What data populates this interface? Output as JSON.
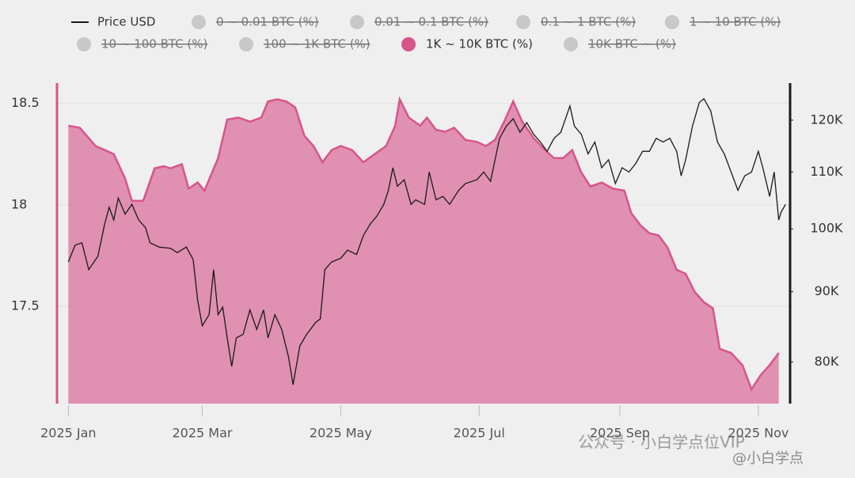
{
  "chart_data": {
    "type": "area",
    "ylim": [
      17.02,
      18.6
    ],
    "yticks": [
      17.5,
      18,
      18.5
    ],
    "y2lim": [
      74600,
      127700
    ],
    "y2log": true,
    "y2ticks": [
      {
        "value": 80000,
        "label": "80K"
      },
      {
        "value": 90000,
        "label": "90K"
      },
      {
        "value": 100000,
        "label": "100K"
      },
      {
        "value": 110000,
        "label": "110K"
      },
      {
        "value": 120000,
        "label": "120K"
      }
    ],
    "xlim": [
      -5,
      318
    ],
    "xticks": [
      {
        "value": 0,
        "label": "2025 Jan"
      },
      {
        "value": 59,
        "label": "2025 Mar"
      },
      {
        "value": 120,
        "label": "2025 May"
      },
      {
        "value": 181,
        "label": "2025 Jul"
      },
      {
        "value": 243,
        "label": "2025 Sep"
      },
      {
        "value": 304,
        "label": "2025 Nov"
      }
    ],
    "grid": true,
    "legend": "top",
    "annotations": [
      "公众号 · 小白学点位VIP",
      "@小白学点"
    ],
    "series": [
      {
        "name": "Price USD",
        "type": "line",
        "axis": "y2",
        "color": "#1a1a1a",
        "visible": true,
        "x": [
          0,
          3,
          6,
          9,
          13,
          16,
          18,
          20,
          22,
          25,
          28,
          31,
          34,
          36,
          40,
          45,
          48,
          52,
          55,
          57,
          59,
          62,
          64,
          66,
          68,
          70,
          72,
          74,
          77,
          80,
          83,
          86,
          88,
          91,
          94,
          97,
          99,
          102,
          105,
          109,
          111,
          113,
          116,
          120,
          123,
          127,
          130,
          133,
          136,
          139,
          141,
          143,
          145,
          148,
          151,
          153,
          157,
          159,
          162,
          165,
          168,
          172,
          175,
          180,
          183,
          186,
          190,
          193,
          196,
          199,
          202,
          205,
          208,
          211,
          214,
          217,
          221,
          223,
          226,
          229,
          232,
          235,
          238,
          241,
          244,
          247,
          250,
          253,
          256,
          259,
          262,
          265,
          268,
          270,
          272,
          275,
          278,
          280,
          283,
          286,
          289,
          292,
          295,
          298,
          301,
          304,
          306,
          309,
          311,
          313,
          314,
          316
        ],
        "values": [
          94600,
          97300,
          97700,
          93400,
          95500,
          100800,
          103700,
          101500,
          105300,
          102500,
          104200,
          101500,
          100200,
          97700,
          97000,
          96800,
          96100,
          97000,
          95000,
          88700,
          85000,
          86600,
          93400,
          86600,
          87700,
          83300,
          79400,
          83300,
          83800,
          87300,
          84500,
          87300,
          83300,
          86600,
          84500,
          80700,
          77000,
          82200,
          83800,
          85500,
          86000,
          93400,
          94600,
          95200,
          96500,
          95800,
          98900,
          100800,
          102200,
          104200,
          106700,
          110800,
          107400,
          108600,
          104200,
          105000,
          104200,
          110000,
          105000,
          105600,
          104200,
          106700,
          107900,
          108600,
          110000,
          108300,
          116400,
          118800,
          120300,
          117600,
          119500,
          117200,
          115700,
          113900,
          116400,
          117600,
          122900,
          118800,
          117200,
          113400,
          115700,
          110800,
          112300,
          107900,
          110800,
          110000,
          111600,
          113900,
          113900,
          116400,
          115700,
          116400,
          113900,
          109300,
          112300,
          118800,
          123600,
          124400,
          121900,
          115700,
          113400,
          110000,
          106700,
          109300,
          110000,
          113900,
          110800,
          105600,
          110000,
          101500,
          102800,
          104200
        ]
      },
      {
        "name": "0 ~ 0.01 BTC (%)",
        "visible": false
      },
      {
        "name": "0.01 ~ 0.1 BTC (%)",
        "visible": false
      },
      {
        "name": "0.1 ~ 1 BTC (%)",
        "visible": false
      },
      {
        "name": "1 ~ 10 BTC (%)",
        "visible": false
      },
      {
        "name": "10 ~ 100 BTC (%)",
        "visible": false
      },
      {
        "name": "100 ~ 1K BTC (%)",
        "visible": false
      },
      {
        "name": "1K ~ 10K BTC (%)",
        "type": "area",
        "color": "#d6558b",
        "visible": true,
        "x": [
          0,
          5,
          12,
          20,
          25,
          28,
          33,
          38,
          42,
          45,
          50,
          53,
          57,
          60,
          63,
          66,
          70,
          75,
          80,
          85,
          88,
          92,
          96,
          100,
          104,
          108,
          112,
          116,
          120,
          125,
          130,
          135,
          140,
          144,
          146,
          150,
          155,
          158,
          162,
          166,
          170,
          175,
          180,
          184,
          188,
          192,
          196,
          200,
          205,
          210,
          214,
          218,
          222,
          226,
          230,
          235,
          240,
          245,
          248,
          252,
          256,
          260,
          264,
          268,
          272,
          276,
          280,
          284,
          287,
          292,
          297,
          301,
          305,
          309,
          313
        ],
        "values": [
          18.39,
          18.38,
          18.29,
          18.25,
          18.13,
          18.02,
          18.02,
          18.18,
          18.19,
          18.18,
          18.2,
          18.08,
          18.11,
          18.07,
          18.15,
          18.23,
          18.42,
          18.43,
          18.41,
          18.43,
          18.51,
          18.52,
          18.51,
          18.48,
          18.34,
          18.29,
          18.21,
          18.27,
          18.29,
          18.27,
          18.21,
          18.25,
          18.29,
          18.39,
          18.52,
          18.43,
          18.39,
          18.43,
          18.37,
          18.36,
          18.38,
          18.32,
          18.31,
          18.29,
          18.32,
          18.41,
          18.51,
          18.41,
          18.33,
          18.27,
          18.23,
          18.23,
          18.27,
          18.16,
          18.09,
          18.11,
          18.08,
          18.07,
          17.96,
          17.9,
          17.86,
          17.85,
          17.79,
          17.68,
          17.66,
          17.57,
          17.52,
          17.49,
          17.29,
          17.27,
          17.21,
          17.09,
          17.16,
          17.21,
          17.27
        ]
      },
      {
        "name": "10K BTC ~ (%)",
        "visible": false
      }
    ]
  }
}
